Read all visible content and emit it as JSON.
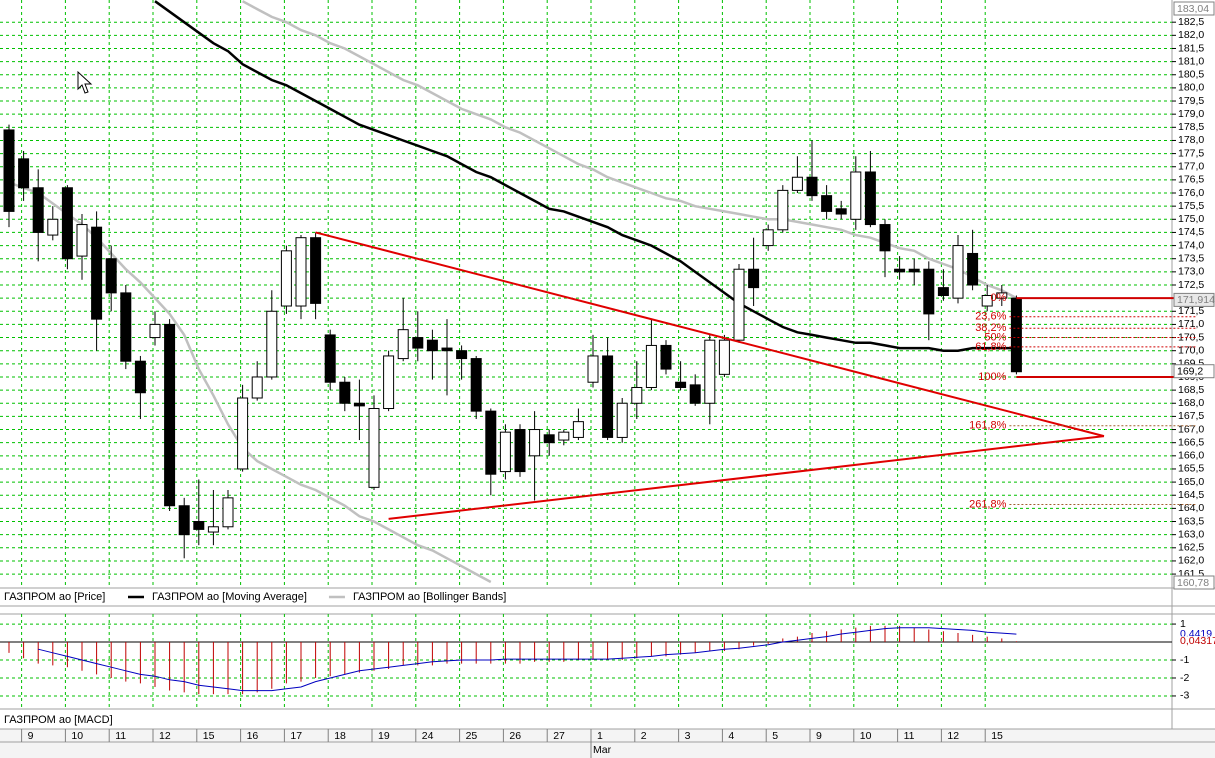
{
  "chart_data": [
    {
      "type": "candlestick",
      "price_name": "ГАЗПРОМ ао [Price]",
      "candles": {
        "open": [
          178.4,
          177.3,
          176.2,
          174.4,
          176.2,
          173.6,
          174.7,
          173.5,
          172.2,
          169.6,
          170.5,
          171.0,
          164.1,
          163.5,
          163.1,
          163.3,
          165.5,
          168.2,
          169.0,
          171.7,
          171.7,
          174.3,
          170.6,
          168.8,
          168.0,
          164.8,
          167.8,
          169.7,
          170.5,
          170.4,
          170.1,
          170.0,
          169.7,
          167.7,
          165.4,
          167.0,
          166.0,
          166.8,
          166.6,
          166.7,
          168.8,
          169.8,
          166.7,
          168.0,
          168.6,
          170.2,
          168.8,
          168.7,
          168.0,
          169.1,
          170.4,
          173.1,
          174.0,
          174.6,
          176.1,
          176.6,
          175.9,
          175.4,
          175.0,
          176.8,
          174.8,
          173.1,
          173.1,
          173.1,
          172.4,
          172.0,
          173.7,
          171.7,
          172.0,
          172.0
        ],
        "high": [
          178.6,
          177.6,
          176.9,
          175.5,
          176.3,
          175.2,
          175.3,
          174.0,
          172.5,
          169.8,
          171.5,
          171.2,
          164.4,
          165.1,
          164.7,
          164.7,
          168.7,
          169.6,
          172.3,
          174.0,
          174.4,
          174.5,
          170.8,
          169.0,
          168.9,
          168.3,
          170.0,
          172.0,
          171.5,
          170.8,
          171.2,
          170.2,
          169.8,
          167.8,
          167.2,
          167.2,
          167.7,
          167.0,
          167.0,
          167.8,
          170.6,
          170.5,
          168.2,
          169.6,
          171.2,
          170.4,
          169.6,
          169.1,
          170.6,
          170.6,
          173.3,
          174.3,
          174.8,
          176.3,
          177.4,
          178.0,
          176.3,
          175.7,
          177.4,
          177.6,
          175.0,
          173.6,
          173.5,
          173.4,
          173.1,
          174.4,
          174.6,
          172.5,
          172.5,
          172.1
        ],
        "low": [
          174.7,
          175.7,
          173.4,
          174.2,
          173.1,
          172.7,
          170.0,
          171.5,
          169.3,
          167.4,
          170.2,
          163.9,
          162.1,
          162.6,
          162.6,
          163.2,
          165.4,
          168.1,
          168.9,
          171.4,
          171.2,
          171.2,
          168.5,
          167.7,
          166.6,
          164.7,
          167.7,
          169.6,
          169.6,
          168.9,
          168.3,
          168.9,
          167.4,
          164.5,
          165.1,
          165.2,
          164.3,
          166.0,
          166.4,
          166.6,
          168.6,
          166.6,
          166.5,
          167.4,
          168.5,
          169.1,
          168.5,
          167.9,
          167.2,
          169.0,
          170.3,
          171.7,
          173.8,
          174.5,
          176.0,
          175.7,
          175.0,
          175.0,
          174.6,
          174.7,
          172.8,
          172.7,
          172.5,
          170.4,
          171.9,
          171.8,
          172.3,
          171.5,
          171.7,
          169.1
        ],
        "close": [
          175.3,
          176.2,
          174.5,
          175.0,
          173.5,
          174.8,
          171.2,
          172.2,
          169.6,
          168.4,
          171.0,
          164.1,
          163.0,
          163.2,
          163.3,
          164.4,
          168.2,
          169.0,
          171.5,
          173.8,
          174.3,
          171.8,
          168.8,
          168.0,
          167.9,
          167.8,
          169.8,
          170.8,
          170.1,
          170.0,
          170.0,
          169.7,
          167.7,
          165.3,
          166.9,
          165.4,
          167.0,
          166.5,
          166.9,
          167.3,
          169.8,
          166.7,
          168.0,
          168.6,
          170.2,
          169.3,
          168.6,
          168.0,
          170.4,
          170.4,
          173.1,
          172.4,
          174.6,
          176.1,
          176.6,
          175.9,
          175.3,
          175.2,
          176.8,
          174.8,
          173.8,
          173.0,
          173.0,
          171.4,
          172.1,
          174.0,
          172.5,
          172.1,
          172.2,
          169.2
        ]
      },
      "up_color": "#ffffff",
      "down_color": "#000000",
      "series": [
        {
          "name": "ГАЗПРОМ ао [Moving Average]",
          "color": "#000000",
          "values": [
            null,
            null,
            null,
            null,
            null,
            null,
            null,
            null,
            null,
            null,
            183.3,
            182.9,
            182.5,
            182.1,
            181.7,
            181.4,
            180.9,
            180.6,
            180.3,
            180.1,
            179.8,
            179.5,
            179.2,
            178.9,
            178.6,
            178.4,
            178.2,
            178.0,
            177.8,
            177.6,
            177.4,
            177.1,
            176.8,
            176.6,
            176.3,
            176.0,
            175.7,
            175.4,
            175.3,
            175.1,
            174.9,
            174.7,
            174.4,
            174.2,
            174.0,
            173.7,
            173.4,
            173.0,
            172.6,
            172.2,
            171.8,
            171.5,
            171.2,
            170.9,
            170.7,
            170.6,
            170.5,
            170.4,
            170.3,
            170.3,
            170.2,
            170.1,
            170.1,
            170.1,
            170.0,
            170.0,
            170.1,
            170.1,
            170.1,
            170.1
          ]
        },
        {
          "name": "ГАЗПРОМ ао [Bollinger Bands]",
          "color": "#c0c0c0",
          "upper": [
            null,
            null,
            null,
            null,
            null,
            null,
            null,
            null,
            null,
            null,
            null,
            null,
            null,
            null,
            null,
            null,
            183.3,
            183.0,
            182.7,
            182.5,
            182.2,
            182.0,
            181.7,
            181.5,
            181.2,
            180.9,
            180.6,
            180.3,
            180.1,
            179.8,
            179.5,
            179.2,
            179.0,
            178.8,
            178.5,
            178.3,
            178.0,
            177.7,
            177.4,
            177.1,
            176.9,
            176.6,
            176.4,
            176.2,
            176.0,
            175.8,
            175.7,
            175.5,
            175.4,
            175.3,
            175.2,
            175.1,
            175.0,
            175.0,
            174.9,
            174.8,
            174.7,
            174.6,
            174.4,
            174.3,
            174.1,
            173.9,
            173.8,
            173.5,
            173.3,
            173.1,
            172.8,
            172.5,
            172.3,
            172.0
          ],
          "lower": [
            176.4,
            176.2,
            176.0,
            175.6,
            175.2,
            174.8,
            174.3,
            173.7,
            173.1,
            172.6,
            172.0,
            171.4,
            170.6,
            169.3,
            168.3,
            167.2,
            166.3,
            165.8,
            165.5,
            165.2,
            164.9,
            164.7,
            164.4,
            164.1,
            163.7,
            163.5,
            163.2,
            162.9,
            162.6,
            162.4,
            162.1,
            161.8,
            161.5,
            161.2,
            null,
            null,
            null,
            null,
            null,
            null,
            null,
            null,
            null,
            null,
            null,
            null,
            null,
            null,
            null,
            null,
            null,
            null,
            null,
            null,
            null,
            null,
            null,
            null,
            null,
            null,
            null,
            null,
            null,
            null,
            null,
            null,
            null,
            null,
            null,
            null
          ]
        }
      ],
      "ylim": [
        160.78,
        183.04
      ],
      "ylim_labels": [
        "160,78",
        "183,04"
      ],
      "yticks": [
        {
          "value": 161.5,
          "label": "161,5"
        },
        {
          "value": 162.0,
          "label": "162,0"
        },
        {
          "value": 162.5,
          "label": "162,5"
        },
        {
          "value": 163.0,
          "label": "163,0"
        },
        {
          "value": 163.5,
          "label": "163,5"
        },
        {
          "value": 164.0,
          "label": "164,0"
        },
        {
          "value": 164.5,
          "label": "164,5"
        },
        {
          "value": 165.0,
          "label": "165,0"
        },
        {
          "value": 165.5,
          "label": "165,5"
        },
        {
          "value": 166.0,
          "label": "166,0"
        },
        {
          "value": 166.5,
          "label": "166,5"
        },
        {
          "value": 167.0,
          "label": "167,0"
        },
        {
          "value": 167.5,
          "label": "167,5"
        },
        {
          "value": 168.0,
          "label": "168,0"
        },
        {
          "value": 168.5,
          "label": "168,5"
        },
        {
          "value": 169.0,
          "label": "169,0"
        },
        {
          "value": 169.5,
          "label": "169,5"
        },
        {
          "value": 170.0,
          "label": "170,0"
        },
        {
          "value": 170.5,
          "label": "170,5"
        },
        {
          "value": 171.0,
          "label": "171,0"
        },
        {
          "value": 171.5,
          "label": "171,5"
        },
        {
          "value": 172.0,
          "label": "172,0"
        },
        {
          "value": 172.5,
          "label": "172,5"
        },
        {
          "value": 173.0,
          "label": "173,0"
        },
        {
          "value": 173.5,
          "label": "173,5"
        },
        {
          "value": 174.0,
          "label": "174,0"
        },
        {
          "value": 174.5,
          "label": "174,5"
        },
        {
          "value": 175.0,
          "label": "175,0"
        },
        {
          "value": 175.5,
          "label": "175,5"
        },
        {
          "value": 176.0,
          "label": "176,0"
        },
        {
          "value": 176.5,
          "label": "176,5"
        },
        {
          "value": 177.0,
          "label": "177,0"
        },
        {
          "value": 177.5,
          "label": "177,5"
        },
        {
          "value": 178.0,
          "label": "178,0"
        },
        {
          "value": 178.5,
          "label": "178,5"
        },
        {
          "value": 179.0,
          "label": "179,0"
        },
        {
          "value": 179.5,
          "label": "179,5"
        },
        {
          "value": 180.0,
          "label": "180,0"
        },
        {
          "value": 180.5,
          "label": "180,5"
        },
        {
          "value": 181.0,
          "label": "181,0"
        },
        {
          "value": 181.5,
          "label": "181,5"
        },
        {
          "value": 182.0,
          "label": "182,0"
        },
        {
          "value": 182.5,
          "label": "182,5"
        }
      ],
      "grid": true,
      "grid_color": "#00c000",
      "price_labels": [
        {
          "value": 171.914,
          "label": "171,914"
        },
        {
          "value": 169.2,
          "label": "169,2"
        }
      ],
      "trendlines": [
        {
          "x": [
            21,
            75
          ],
          "y": [
            174.5,
            166.75
          ]
        },
        {
          "x": [
            26,
            75
          ],
          "y": [
            163.6,
            166.75
          ]
        }
      ],
      "trendline_color": "#e00000",
      "fibonacci": {
        "x": 69,
        "start": 172.0,
        "end": 169.0,
        "color": "#d00000",
        "levels": [
          {
            "value": 0,
            "label": "0%"
          },
          {
            "value": 23.6,
            "label": "23,6%"
          },
          {
            "value": 38.2,
            "label": "38,2%"
          },
          {
            "value": 50,
            "label": "50%"
          },
          {
            "value": 61.8,
            "label": "61,8%"
          },
          {
            "value": 100,
            "label": "100%"
          },
          {
            "value": 161.8,
            "label": "161,8%"
          },
          {
            "value": 261.8,
            "label": "261,8%"
          }
        ]
      },
      "x_labels": [
        {
          "value": 1,
          "label": "9"
        },
        {
          "value": 4,
          "label": "10"
        },
        {
          "value": 7,
          "label": "11"
        },
        {
          "value": 10,
          "label": "12"
        },
        {
          "value": 13,
          "label": "15"
        },
        {
          "value": 16,
          "label": "16"
        },
        {
          "value": 19,
          "label": "17"
        },
        {
          "value": 22,
          "label": "18"
        },
        {
          "value": 25,
          "label": "19"
        },
        {
          "value": 28,
          "label": "24"
        },
        {
          "value": 31,
          "label": "25"
        },
        {
          "value": 34,
          "label": "26"
        },
        {
          "value": 37,
          "label": "27"
        },
        {
          "value": 40,
          "label": "1"
        },
        {
          "value": 43,
          "label": "2"
        },
        {
          "value": 46,
          "label": "3"
        },
        {
          "value": 49,
          "label": "4"
        },
        {
          "value": 52,
          "label": "5"
        },
        {
          "value": 55,
          "label": "9"
        },
        {
          "value": 58,
          "label": "10"
        },
        {
          "value": 61,
          "label": "11"
        },
        {
          "value": 64,
          "label": "12"
        },
        {
          "value": 67,
          "label": "15"
        }
      ],
      "month_labels": [
        {
          "value": 40,
          "label": "Mar"
        }
      ]
    },
    {
      "type": "macd",
      "name": "ГАЗПРОМ ао [MACD]",
      "histogram": {
        "color": "#c00000",
        "values": [
          -0.6,
          -0.9,
          -1.2,
          -1.3,
          -1.4,
          -1.6,
          -1.8,
          -2.0,
          -2.2,
          -2.3,
          -2.5,
          -2.7,
          -2.8,
          -2.9,
          -2.9,
          -2.9,
          -2.9,
          -2.8,
          -2.6,
          -2.3,
          -2.2,
          -2.0,
          -1.9,
          -1.8,
          -1.7,
          -1.6,
          -1.5,
          -1.3,
          -1.3,
          -1.3,
          -1.2,
          -1.2,
          -1.2,
          -1.2,
          -1.2,
          -1.2,
          -1.1,
          -1.1,
          -1.1,
          -1.0,
          -1.0,
          -1.0,
          -1.0,
          -0.9,
          -0.8,
          -0.8,
          -0.7,
          -0.6,
          -0.5,
          -0.5,
          -0.4,
          -0.2,
          -0.1,
          0.2,
          0.3,
          0.5,
          0.6,
          0.7,
          0.8,
          0.9,
          0.9,
          0.9,
          0.8,
          0.7,
          0.6,
          0.5,
          0.4,
          0.3,
          0.2,
          0.04317
        ]
      },
      "line": {
        "color": "#0000c0",
        "values": [
          null,
          null,
          -0.4,
          -0.6,
          -0.8,
          -1.0,
          -1.2,
          -1.4,
          -1.6,
          -1.8,
          -1.9,
          -2.1,
          -2.2,
          -2.4,
          -2.5,
          -2.6,
          -2.7,
          -2.7,
          -2.7,
          -2.6,
          -2.5,
          -2.2,
          -2.0,
          -1.8,
          -1.6,
          -1.5,
          -1.4,
          -1.3,
          -1.2,
          -1.1,
          -1.05,
          -1.0,
          -1.0,
          -1.0,
          -0.95,
          -0.95,
          -0.95,
          -0.95,
          -0.95,
          -0.95,
          -0.95,
          -0.95,
          -0.9,
          -0.85,
          -0.8,
          -0.7,
          -0.65,
          -0.6,
          -0.5,
          -0.4,
          -0.35,
          -0.25,
          -0.15,
          0.0,
          0.1,
          0.2,
          0.3,
          0.45,
          0.55,
          0.65,
          0.75,
          0.8,
          0.8,
          0.8,
          0.75,
          0.7,
          0.65,
          0.55,
          0.5,
          0.4419
        ]
      },
      "ylim": [
        -3.67,
        1.56
      ],
      "yticks": [
        1,
        -1,
        -2,
        -3
      ],
      "last_labels": [
        {
          "value": 0.4419,
          "label": "0,4419",
          "color": "#0000c0"
        },
        {
          "value": 0.04317,
          "label": "0,04317",
          "color": "#c00000"
        }
      ]
    }
  ]
}
